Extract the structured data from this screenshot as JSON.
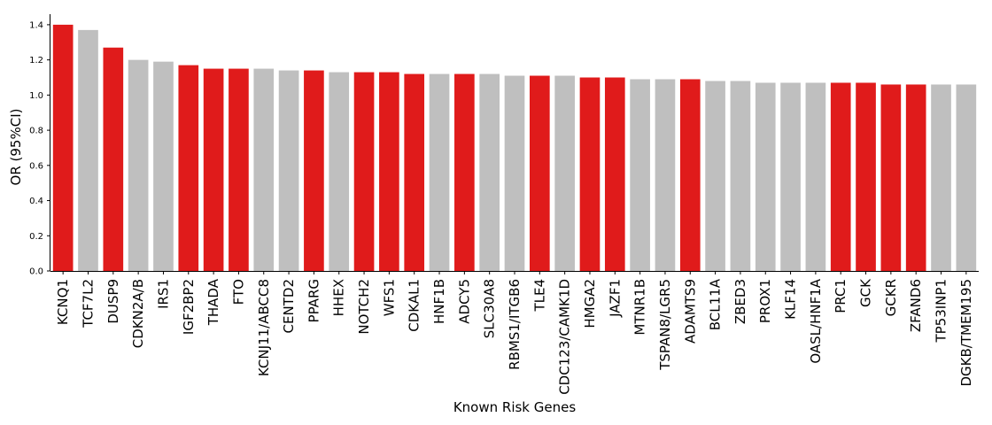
{
  "chart_data": {
    "type": "bar",
    "xlabel": "Known Risk Genes",
    "ylabel": "OR (95%CI)",
    "ylim": [
      0,
      1.46
    ],
    "yticks": [
      "0.0",
      "0.2",
      "0.4",
      "0.6",
      "0.8",
      "1.0",
      "1.2",
      "1.4"
    ],
    "grid": false,
    "colors": {
      "highlight": "#e01b1b",
      "other": "#bfbfbf",
      "axis": "#000000"
    },
    "categories": [
      "KCNQ1",
      "TCF7L2",
      "DUSP9",
      "CDKN2A/B",
      "IRS1",
      "IGF2BP2",
      "THADA",
      "FTO",
      "KCNJ11/ABCC8",
      "CENTD2",
      "PPARG",
      "HHEX",
      "NOTCH2",
      "WFS1",
      "CDKAL1",
      "HNF1B",
      "ADCY5",
      "SLC30A8",
      "RBMS1/ITGB6",
      "TLE4",
      "CDC123/CAMK1D",
      "HMGA2",
      "JAZF1",
      "MTNR1B",
      "TSPAN8/LGR5",
      "ADAMTS9",
      "BCL11A",
      "ZBED3",
      "PROX1",
      "KLF14",
      "OASL/HNF1A",
      "PRC1",
      "GCK",
      "GCKR",
      "ZFAND6",
      "TP53INP1",
      "DGKB/TMEM195"
    ],
    "values": [
      1.4,
      1.37,
      1.27,
      1.2,
      1.19,
      1.17,
      1.15,
      1.15,
      1.15,
      1.14,
      1.14,
      1.13,
      1.13,
      1.13,
      1.12,
      1.12,
      1.12,
      1.12,
      1.11,
      1.11,
      1.11,
      1.1,
      1.1,
      1.09,
      1.09,
      1.09,
      1.08,
      1.08,
      1.07,
      1.07,
      1.07,
      1.07,
      1.07,
      1.06,
      1.06,
      1.06,
      1.06
    ],
    "highlighted": [
      true,
      false,
      true,
      false,
      false,
      true,
      true,
      true,
      false,
      false,
      true,
      false,
      true,
      true,
      true,
      false,
      true,
      false,
      false,
      true,
      false,
      true,
      true,
      false,
      false,
      true,
      false,
      false,
      false,
      false,
      false,
      true,
      true,
      true,
      true,
      false,
      false
    ]
  }
}
